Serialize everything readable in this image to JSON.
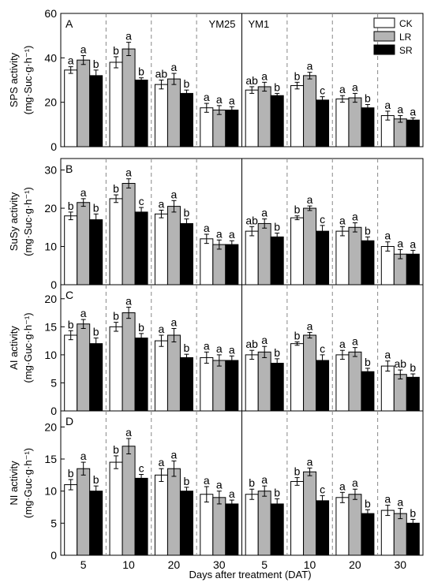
{
  "chart_data": {
    "type": "bar",
    "layout": "4 panels stacked vertically, each split into YM25 (left) and YM1 (right) halves",
    "categories": [
      "5",
      "10",
      "20",
      "30"
    ],
    "xlabel": "Days after treatment (DAT)",
    "legend": {
      "entries": [
        "CK",
        "LR",
        "SR"
      ],
      "colors": [
        "#ffffff",
        "#b4b4b4",
        "#000000"
      ],
      "placement": "top-right of panel A"
    },
    "cultivars": [
      "YM25",
      "YM1"
    ],
    "grid": false,
    "panels": [
      {
        "letter": "A",
        "ylabel": [
          "SPS activity",
          "(mg·Suc·g·h⁻¹)"
        ],
        "ylim": [
          0,
          60
        ],
        "yticks": [
          0,
          20,
          40,
          60
        ],
        "groups": [
          {
            "cultivar": "YM25",
            "series": [
              {
                "name": "CK",
                "values": [
                  34.5,
                  38,
                  28,
                  17.5
                ],
                "err": [
                  1.5,
                  2.5,
                  2,
                  2
                ],
                "letters": [
                  "a",
                  "b",
                  "ab",
                  "a"
                ]
              },
              {
                "name": "LR",
                "values": [
                  39,
                  44,
                  30.5,
                  16.5
                ],
                "err": [
                  2,
                  3,
                  2.5,
                  2
                ],
                "letters": [
                  "a",
                  "a",
                  "a",
                  "a"
                ]
              },
              {
                "name": "SR",
                "values": [
                  32,
                  30,
                  24,
                  16.5
                ],
                "err": [
                  2.5,
                  1,
                  1.5,
                  1.5
                ],
                "letters": [
                  "b",
                  "b",
                  "b",
                  "a"
                ]
              }
            ]
          },
          {
            "cultivar": "YM1",
            "series": [
              {
                "name": "CK",
                "values": [
                  25.5,
                  27.5,
                  21.5,
                  14
                ],
                "err": [
                  1.5,
                  1.5,
                  1.5,
                  2
                ],
                "letters": [
                  "ab",
                  "b",
                  "a",
                  "a"
                ]
              },
              {
                "name": "LR",
                "values": [
                  27,
                  32,
                  22,
                  12.5
                ],
                "err": [
                  2,
                  1.5,
                  2,
                  1.5
                ],
                "letters": [
                  "a",
                  "a",
                  "a",
                  "a"
                ]
              },
              {
                "name": "SR",
                "values": [
                  23,
                  21,
                  17.5,
                  12
                ],
                "err": [
                  1,
                  1.5,
                  1.5,
                  1
                ],
                "letters": [
                  "b",
                  "c",
                  "b",
                  "a"
                ]
              }
            ]
          }
        ]
      },
      {
        "letter": "B",
        "ylabel": [
          "SuSy activity",
          "(mg·Suc·g·h⁻¹)"
        ],
        "ylim": [
          0,
          33
        ],
        "yticks": [
          0,
          10,
          20,
          30
        ],
        "groups": [
          {
            "cultivar": "YM25",
            "series": [
              {
                "name": "CK",
                "values": [
                  18,
                  22.5,
                  18.5,
                  12
                ],
                "err": [
                  1,
                  1,
                  1,
                  1.2
                ],
                "letters": [
                  "b",
                  "b",
                  "a",
                  "a"
                ]
              },
              {
                "name": "LR",
                "values": [
                  21.5,
                  26.5,
                  20.5,
                  10.5
                ],
                "err": [
                  1,
                  1.2,
                  1.5,
                  1.2
                ],
                "letters": [
                  "a",
                  "a",
                  "a",
                  "a"
                ]
              },
              {
                "name": "SR",
                "values": [
                  17,
                  19,
                  16,
                  10.5
                ],
                "err": [
                  1.5,
                  1.2,
                  1.2,
                  1
                ],
                "letters": [
                  "b",
                  "c",
                  "b",
                  "a"
                ]
              }
            ]
          },
          {
            "cultivar": "YM1",
            "series": [
              {
                "name": "CK",
                "values": [
                  14,
                  17.5,
                  14,
                  10
                ],
                "err": [
                  1.2,
                  0.5,
                  1.2,
                  1.2
                ],
                "letters": [
                  "ab",
                  "b",
                  "a",
                  "a"
                ]
              },
              {
                "name": "LR",
                "values": [
                  16,
                  20,
                  15,
                  8
                ],
                "err": [
                  1.2,
                  0.6,
                  1.2,
                  1.2
                ],
                "letters": [
                  "a",
                  "a",
                  "a",
                  "a"
                ]
              },
              {
                "name": "SR",
                "values": [
                  12.5,
                  14,
                  11.5,
                  8
                ],
                "err": [
                  1,
                  1.5,
                  1,
                  1
                ],
                "letters": [
                  "b",
                  "c",
                  "b",
                  "a"
                ]
              }
            ]
          }
        ]
      },
      {
        "letter": "C",
        "ylabel": [
          "AI activity",
          "(mg·Guc·g·h⁻¹)"
        ],
        "ylim": [
          0,
          22.5
        ],
        "yticks": [
          0,
          5,
          10,
          15,
          20
        ],
        "groups": [
          {
            "cultivar": "YM25",
            "series": [
              {
                "name": "CK",
                "values": [
                  13.5,
                  15,
                  12.5,
                  9.5
                ],
                "err": [
                  0.8,
                  0.8,
                  1,
                  1
                ],
                "letters": [
                  "b",
                  "b",
                  "a",
                  "a"
                ]
              },
              {
                "name": "LR",
                "values": [
                  15.5,
                  17.5,
                  13.5,
                  9
                ],
                "err": [
                  0.8,
                  1,
                  1.2,
                  1
                ],
                "letters": [
                  "a",
                  "a",
                  "a",
                  "a"
                ]
              },
              {
                "name": "SR",
                "values": [
                  12,
                  13,
                  9.5,
                  9
                ],
                "err": [
                  1,
                  0.8,
                  0.6,
                  0.8
                ],
                "letters": [
                  "b",
                  "b",
                  "b",
                  "a"
                ]
              }
            ]
          },
          {
            "cultivar": "YM1",
            "series": [
              {
                "name": "CK",
                "values": [
                  10,
                  12,
                  10,
                  8
                ],
                "err": [
                  0.8,
                  0.3,
                  0.8,
                  0.9
                ],
                "letters": [
                  "ab",
                  "b",
                  "a",
                  "a"
                ]
              },
              {
                "name": "LR",
                "values": [
                  10.5,
                  13.5,
                  10.5,
                  6.5
                ],
                "err": [
                  1,
                  0.5,
                  0.8,
                  0.8
                ],
                "letters": [
                  "a",
                  "a",
                  "a",
                  "ab"
                ]
              },
              {
                "name": "SR",
                "values": [
                  8.5,
                  9,
                  7,
                  6
                ],
                "err": [
                  0.8,
                  1,
                  0.6,
                  0.6
                ],
                "letters": [
                  "b",
                  "c",
                  "b",
                  "b"
                ]
              }
            ]
          }
        ]
      },
      {
        "letter": "D",
        "ylabel": [
          "NI activity",
          "(mg·Guc·g·h⁻¹)"
        ],
        "ylim": [
          0,
          22.5
        ],
        "yticks": [
          0,
          5,
          10,
          15,
          20
        ],
        "groups": [
          {
            "cultivar": "YM25",
            "series": [
              {
                "name": "CK",
                "values": [
                  11,
                  14.5,
                  12.5,
                  9.5
                ],
                "err": [
                  0.8,
                  1,
                  1,
                  1.2
                ],
                "letters": [
                  "b",
                  "b",
                  "a",
                  "a"
                ]
              },
              {
                "name": "LR",
                "values": [
                  13.5,
                  17,
                  13.5,
                  9
                ],
                "err": [
                  1,
                  1.2,
                  1.2,
                  1
                ],
                "letters": [
                  "a",
                  "a",
                  "a",
                  "a"
                ]
              },
              {
                "name": "SR",
                "values": [
                  10,
                  12,
                  10,
                  8
                ],
                "err": [
                  0.8,
                  0.6,
                  0.6,
                  0.6
                ],
                "letters": [
                  "b",
                  "c",
                  "b",
                  "a"
                ]
              }
            ]
          },
          {
            "cultivar": "YM1",
            "series": [
              {
                "name": "CK",
                "values": [
                  9.5,
                  11.5,
                  9,
                  7
                ],
                "err": [
                  0.8,
                  0.6,
                  0.8,
                  0.8
                ],
                "letters": [
                  "b",
                  "b",
                  "a",
                  "a"
                ]
              },
              {
                "name": "LR",
                "values": [
                  10,
                  13,
                  9.5,
                  6.5
                ],
                "err": [
                  0.8,
                  0.6,
                  0.8,
                  0.8
                ],
                "letters": [
                  "a",
                  "a",
                  "a",
                  "a"
                ]
              },
              {
                "name": "SR",
                "values": [
                  8,
                  8.5,
                  6.5,
                  5
                ],
                "err": [
                  0.8,
                  0.8,
                  0.6,
                  0.6
                ],
                "letters": [
                  "b",
                  "c",
                  "b",
                  "b"
                ]
              }
            ]
          }
        ]
      }
    ]
  }
}
